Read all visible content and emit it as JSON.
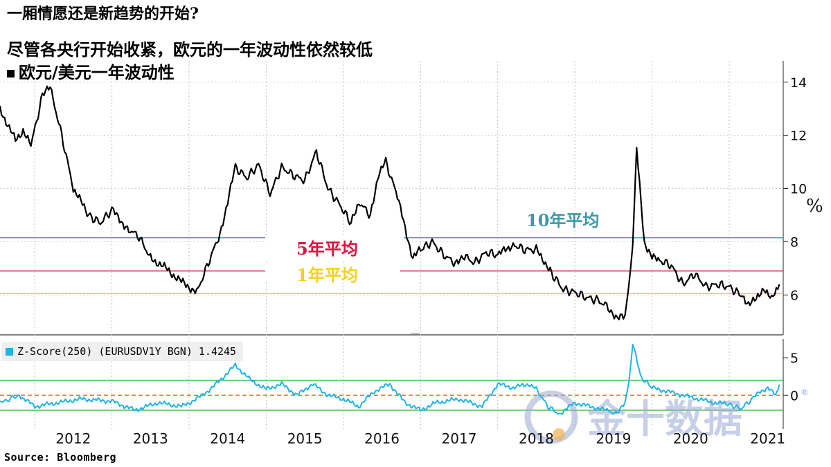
{
  "header": {
    "title": "一厢情愿还是新趋势的开始?",
    "subtitle": "尽管各央行开始收紧，欧元的一年波动性依然较低",
    "legend_main": "欧元/美元一年波动性",
    "legend_z": "Z-Score(250) (EURUSDV1Y BGN) 1.4245",
    "source": "Source: Bloomberg"
  },
  "watermark": {
    "text": "金十数据",
    "reg": "®"
  },
  "colors": {
    "main_line": "#000000",
    "z_line": "#1fb4e6",
    "avg10": "#3a9aa8",
    "avg5": "#e0103a",
    "avg1": "#f2d21a",
    "z_band": "#2fb82f",
    "z_zero": "#e06010"
  },
  "chart_data": [
    {
      "type": "line",
      "title": "",
      "xlabel": "",
      "ylabel": "%",
      "ylim": [
        4.5,
        14.8
      ],
      "yticks": [
        6,
        8,
        10,
        12,
        14
      ],
      "x_labels": [
        "2012",
        "2013",
        "2014",
        "2015",
        "2016",
        "2017",
        "2018",
        "2019",
        "2020",
        "2021"
      ],
      "series": [
        {
          "name": "欧元/美元一年波动性",
          "x": [
            2011.55,
            2011.75,
            2011.85,
            2011.95,
            2012.1,
            2012.2,
            2012.35,
            2012.5,
            2012.7,
            2012.85,
            2013.0,
            2013.2,
            2013.35,
            2013.5,
            2013.7,
            2013.9,
            2014.1,
            2014.25,
            2014.4,
            2014.5,
            2014.6,
            2014.75,
            2014.9,
            2015.05,
            2015.2,
            2015.35,
            2015.5,
            2015.65,
            2015.8,
            2015.95,
            2016.1,
            2016.2,
            2016.35,
            2016.45,
            2016.55,
            2016.7,
            2016.8,
            2016.9,
            2017.0,
            2017.15,
            2017.3,
            2017.45,
            2017.55,
            2017.7,
            2017.85,
            2018.0,
            2018.2,
            2018.35,
            2018.5,
            2018.6,
            2018.7,
            2018.85,
            2019.0,
            2019.15,
            2019.3,
            2019.45,
            2019.55,
            2019.65,
            2019.7,
            2019.75,
            2019.8,
            2019.9,
            2020.0,
            2020.1,
            2020.25,
            2020.4,
            2020.55,
            2020.7,
            2020.85,
            2021.0,
            2021.15,
            2021.25,
            2021.35,
            2021.45,
            2021.55,
            2021.65
          ],
          "values": [
            13.0,
            11.8,
            12.2,
            11.6,
            13.5,
            13.8,
            12.0,
            10.0,
            9.0,
            8.7,
            9.2,
            8.5,
            8.2,
            7.4,
            7.0,
            6.5,
            6.1,
            7.2,
            8.3,
            9.5,
            10.8,
            10.4,
            10.9,
            9.8,
            10.8,
            10.5,
            10.3,
            11.4,
            10.0,
            9.4,
            8.7,
            9.5,
            9.0,
            10.5,
            11.0,
            9.7,
            8.5,
            7.4,
            7.7,
            8.0,
            7.5,
            7.2,
            7.5,
            7.2,
            7.6,
            7.5,
            7.9,
            7.7,
            7.7,
            7.3,
            6.8,
            6.2,
            6.1,
            5.9,
            5.8,
            5.5,
            5.1,
            5.2,
            6.5,
            8.0,
            11.5,
            8.0,
            7.4,
            7.3,
            7.1,
            6.4,
            6.8,
            6.3,
            6.4,
            6.3,
            6.0,
            5.7,
            5.8,
            6.3,
            5.8,
            6.4
          ]
        }
      ],
      "reference_lines": [
        {
          "name": "10年平均",
          "value": 8.15
        },
        {
          "name": "5年平均",
          "value": 6.9
        },
        {
          "name": "1年平均",
          "value": 6.05
        }
      ]
    },
    {
      "type": "line",
      "title": "",
      "xlabel": "",
      "ylabel": "",
      "ylim": [
        -4.5,
        7.5
      ],
      "yticks": [
        0,
        5
      ],
      "series": [
        {
          "name": "Z-Score(250) (EURUSDV1Y BGN)",
          "x": [
            2011.55,
            2011.8,
            2012.0,
            2012.3,
            2012.6,
            2013.0,
            2013.3,
            2013.6,
            2013.9,
            2014.1,
            2014.3,
            2014.5,
            2014.6,
            2014.8,
            2015.0,
            2015.2,
            2015.4,
            2015.6,
            2015.8,
            2016.0,
            2016.2,
            2016.4,
            2016.6,
            2016.8,
            2017.0,
            2017.2,
            2017.5,
            2017.8,
            2018.0,
            2018.2,
            2018.4,
            2018.5,
            2018.65,
            2018.8,
            2019.0,
            2019.2,
            2019.4,
            2019.55,
            2019.65,
            2019.7,
            2019.75,
            2019.85,
            2020.0,
            2020.2,
            2020.4,
            2020.6,
            2020.8,
            2021.0,
            2021.15,
            2021.3,
            2021.4,
            2021.5,
            2021.6,
            2021.65
          ],
          "values": [
            -1.0,
            0.0,
            -1.5,
            -1.0,
            -0.5,
            -0.8,
            -2.0,
            -1.0,
            -1.5,
            -0.5,
            1.0,
            3.0,
            4.0,
            2.0,
            0.8,
            1.5,
            0.0,
            1.5,
            0.0,
            -0.5,
            -1.5,
            0.5,
            1.5,
            -1.0,
            -2.0,
            -1.0,
            -0.5,
            -1.5,
            1.5,
            1.0,
            1.5,
            0.8,
            -1.5,
            -2.5,
            -1.0,
            -1.5,
            -2.0,
            -2.5,
            -1.0,
            2.0,
            7.0,
            2.5,
            1.0,
            0.5,
            0.0,
            -0.5,
            -1.0,
            -1.2,
            -1.8,
            -0.5,
            0.5,
            1.0,
            0.0,
            1.4245
          ]
        }
      ],
      "reference_lines": [
        {
          "name": "",
          "value": 2.0
        },
        {
          "name": "",
          "value": 0.0
        },
        {
          "name": "",
          "value": -2.0
        }
      ]
    }
  ]
}
